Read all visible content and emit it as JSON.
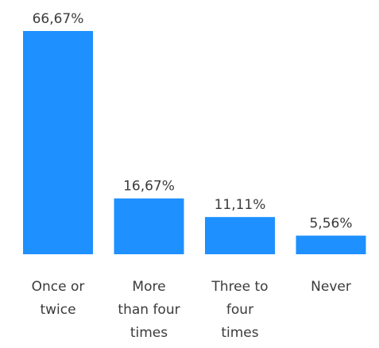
{
  "chart_data": {
    "type": "bar",
    "categories": [
      [
        "Once or",
        "twice"
      ],
      [
        "More",
        "than four",
        "times"
      ],
      [
        "Three to",
        "four",
        "times"
      ],
      [
        "Never"
      ]
    ],
    "values": [
      66.67,
      16.67,
      11.11,
      5.56
    ],
    "value_labels": [
      "66,67%",
      "16,67%",
      "11,11%",
      "5,56%"
    ],
    "ylim": [
      0,
      66.67
    ],
    "grid": false,
    "colors": {
      "bar": "#1e90ff",
      "text": "#3b3b3b"
    }
  }
}
